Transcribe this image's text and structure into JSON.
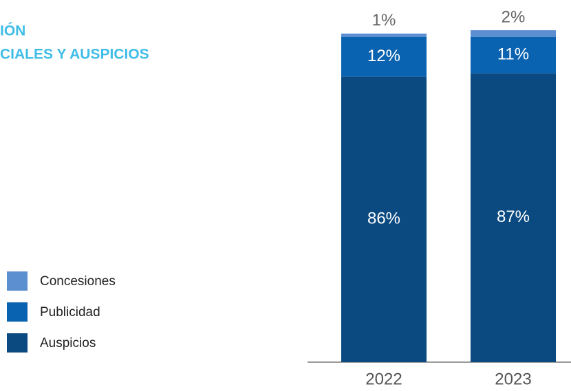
{
  "chart_data": {
    "type": "stacked_bar",
    "title": [
      "IÓN",
      "CIALES Y AUSPICIOS"
    ],
    "categories": [
      "2022",
      "2023"
    ],
    "series": [
      {
        "name": "Concesiones",
        "color": "#5b8fd0",
        "values": [
          1,
          2
        ],
        "value_labels": [
          "1%",
          "2%"
        ]
      },
      {
        "name": "Publicidad",
        "color": "#0a63b0",
        "values": [
          12,
          11
        ],
        "value_labels": [
          "12%",
          "11%"
        ]
      },
      {
        "name": "Auspicios",
        "color": "#0a4a80",
        "values": [
          86,
          87
        ],
        "value_labels": [
          "86%",
          "87%"
        ]
      }
    ]
  }
}
